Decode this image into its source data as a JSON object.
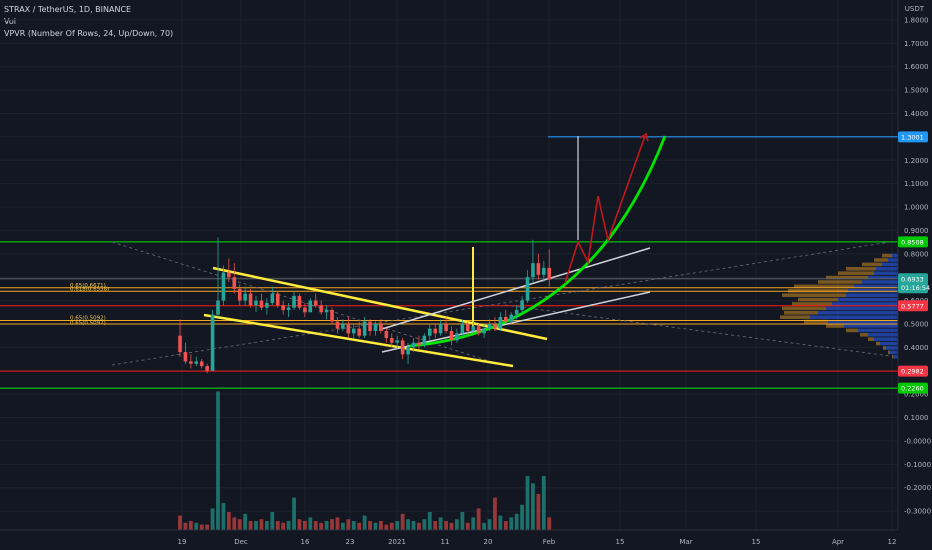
{
  "header": {
    "symbol_line": "STRAX / TetherUS, 1D, BINANCE",
    "vol_label": "Vol",
    "indicator_line": "VPVR (Number Of Rows, 24, Up/Down, 70)"
  },
  "colors": {
    "background": "#131722",
    "up": "#26a69a",
    "down": "#ef5350",
    "yellow": "#ffeb3b",
    "green_line": "#00e600",
    "red_line": "#ff1a1a",
    "blue_line": "#2196f3",
    "orange_line": "#f5a623",
    "white_line": "#d1d4dc",
    "dark_red_arrow": "#c2181d"
  },
  "chart_data": {
    "type": "candlestick",
    "symbol": "STRAX / TetherUS",
    "interval": "1D",
    "exchange": "BINANCE",
    "y_unit": "USDT",
    "x_ticks": [
      "19",
      "Dec",
      "16",
      "23",
      "2021",
      "11",
      "20",
      "Feb",
      "15",
      "Mar",
      "15",
      "Apr",
      "12"
    ],
    "y_ticks": [
      "1.9000",
      "1.8000",
      "1.7000",
      "1.6000",
      "1.5000",
      "1.4000",
      "1.3000",
      "1.2000",
      "1.1000",
      "1.0000",
      "0.9000",
      "0.8000",
      "0.7000",
      "0.6000",
      "0.5000",
      "0.4000",
      "0.3000",
      "0.2000",
      "0.1000",
      "-0.0000",
      "-0.1000",
      "-0.2000",
      "-0.3000"
    ],
    "price_badges": [
      {
        "label": "1.3001",
        "value": 1.3001,
        "color": "#2196f3"
      },
      {
        "label": "0.8508",
        "value": 0.8508,
        "color": "#00c800"
      },
      {
        "label": "0.6933",
        "value": 0.6933,
        "color": "#26a69a"
      },
      {
        "label": "01:16:54",
        "value": 0.655,
        "color": "#26a69a"
      },
      {
        "label": "0.5777",
        "value": 0.5777,
        "color": "#f23645"
      },
      {
        "label": "0.2982",
        "value": 0.2982,
        "color": "#f23645"
      },
      {
        "label": "0.2260",
        "value": 0.226,
        "color": "#00c800"
      }
    ],
    "horizontal_levels": [
      {
        "value": 1.3001,
        "color": "#2196f3"
      },
      {
        "value": 0.8508,
        "color": "#00e600"
      },
      {
        "value": 0.6933,
        "color": "#5d606b"
      },
      {
        "value": 0.655,
        "color": "#f5a623"
      },
      {
        "value": 0.64,
        "color": "#f5a623"
      },
      {
        "value": 0.5777,
        "color": "#ff1a1a"
      },
      {
        "value": 0.515,
        "color": "#f5a623"
      },
      {
        "value": 0.5,
        "color": "#f5a623"
      },
      {
        "value": 0.2982,
        "color": "#ff1a1a"
      },
      {
        "value": 0.226,
        "color": "#00e600"
      }
    ],
    "fib_labels": [
      {
        "text": "0.65(0.6671)",
        "value": 0.667
      },
      {
        "text": "0.618(0.6558)",
        "value": 0.652
      },
      {
        "text": "0.65(0.5092)",
        "value": 0.527
      },
      {
        "text": "0.65(0.5097)",
        "value": 0.507
      }
    ],
    "candles": [
      {
        "o": 0.45,
        "h": 0.52,
        "l": 0.36,
        "c": 0.38
      },
      {
        "o": 0.38,
        "h": 0.42,
        "l": 0.33,
        "c": 0.34
      },
      {
        "o": 0.34,
        "h": 0.37,
        "l": 0.31,
        "c": 0.33
      },
      {
        "o": 0.33,
        "h": 0.36,
        "l": 0.32,
        "c": 0.34
      },
      {
        "o": 0.34,
        "h": 0.35,
        "l": 0.31,
        "c": 0.32
      },
      {
        "o": 0.32,
        "h": 0.33,
        "l": 0.29,
        "c": 0.3
      },
      {
        "o": 0.3,
        "h": 0.56,
        "l": 0.3,
        "c": 0.54
      },
      {
        "o": 0.54,
        "h": 0.87,
        "l": 0.53,
        "c": 0.6
      },
      {
        "o": 0.6,
        "h": 0.75,
        "l": 0.58,
        "c": 0.72
      },
      {
        "o": 0.72,
        "h": 0.78,
        "l": 0.68,
        "c": 0.7
      },
      {
        "o": 0.7,
        "h": 0.76,
        "l": 0.63,
        "c": 0.65
      },
      {
        "o": 0.65,
        "h": 0.67,
        "l": 0.58,
        "c": 0.6
      },
      {
        "o": 0.6,
        "h": 0.66,
        "l": 0.58,
        "c": 0.63
      },
      {
        "o": 0.63,
        "h": 0.65,
        "l": 0.57,
        "c": 0.58
      },
      {
        "o": 0.58,
        "h": 0.62,
        "l": 0.55,
        "c": 0.6
      },
      {
        "o": 0.6,
        "h": 0.63,
        "l": 0.56,
        "c": 0.57
      },
      {
        "o": 0.57,
        "h": 0.61,
        "l": 0.54,
        "c": 0.59
      },
      {
        "o": 0.59,
        "h": 0.66,
        "l": 0.58,
        "c": 0.63
      },
      {
        "o": 0.63,
        "h": 0.64,
        "l": 0.57,
        "c": 0.58
      },
      {
        "o": 0.58,
        "h": 0.6,
        "l": 0.54,
        "c": 0.56
      },
      {
        "o": 0.56,
        "h": 0.59,
        "l": 0.53,
        "c": 0.57
      },
      {
        "o": 0.57,
        "h": 0.64,
        "l": 0.56,
        "c": 0.62
      },
      {
        "o": 0.62,
        "h": 0.63,
        "l": 0.56,
        "c": 0.57
      },
      {
        "o": 0.57,
        "h": 0.59,
        "l": 0.53,
        "c": 0.55
      },
      {
        "o": 0.55,
        "h": 0.61,
        "l": 0.55,
        "c": 0.6
      },
      {
        "o": 0.6,
        "h": 0.63,
        "l": 0.57,
        "c": 0.58
      },
      {
        "o": 0.58,
        "h": 0.6,
        "l": 0.54,
        "c": 0.55
      },
      {
        "o": 0.55,
        "h": 0.58,
        "l": 0.52,
        "c": 0.56
      },
      {
        "o": 0.56,
        "h": 0.57,
        "l": 0.5,
        "c": 0.51
      },
      {
        "o": 0.51,
        "h": 0.53,
        "l": 0.46,
        "c": 0.48
      },
      {
        "o": 0.48,
        "h": 0.52,
        "l": 0.47,
        "c": 0.5
      },
      {
        "o": 0.5,
        "h": 0.53,
        "l": 0.44,
        "c": 0.46
      },
      {
        "o": 0.46,
        "h": 0.5,
        "l": 0.44,
        "c": 0.48
      },
      {
        "o": 0.48,
        "h": 0.51,
        "l": 0.44,
        "c": 0.45
      },
      {
        "o": 0.45,
        "h": 0.53,
        "l": 0.44,
        "c": 0.51
      },
      {
        "o": 0.51,
        "h": 0.52,
        "l": 0.45,
        "c": 0.47
      },
      {
        "o": 0.47,
        "h": 0.51,
        "l": 0.45,
        "c": 0.5
      },
      {
        "o": 0.5,
        "h": 0.52,
        "l": 0.46,
        "c": 0.47
      },
      {
        "o": 0.47,
        "h": 0.48,
        "l": 0.42,
        "c": 0.44
      },
      {
        "o": 0.44,
        "h": 0.46,
        "l": 0.4,
        "c": 0.42
      },
      {
        "o": 0.42,
        "h": 0.45,
        "l": 0.39,
        "c": 0.43
      },
      {
        "o": 0.43,
        "h": 0.44,
        "l": 0.35,
        "c": 0.37
      },
      {
        "o": 0.37,
        "h": 0.42,
        "l": 0.33,
        "c": 0.4
      },
      {
        "o": 0.4,
        "h": 0.44,
        "l": 0.38,
        "c": 0.42
      },
      {
        "o": 0.42,
        "h": 0.45,
        "l": 0.39,
        "c": 0.41
      },
      {
        "o": 0.41,
        "h": 0.46,
        "l": 0.4,
        "c": 0.45
      },
      {
        "o": 0.45,
        "h": 0.5,
        "l": 0.43,
        "c": 0.48
      },
      {
        "o": 0.48,
        "h": 0.5,
        "l": 0.44,
        "c": 0.46
      },
      {
        "o": 0.46,
        "h": 0.52,
        "l": 0.45,
        "c": 0.5
      },
      {
        "o": 0.5,
        "h": 0.53,
        "l": 0.46,
        "c": 0.47
      },
      {
        "o": 0.47,
        "h": 0.49,
        "l": 0.41,
        "c": 0.43
      },
      {
        "o": 0.43,
        "h": 0.48,
        "l": 0.42,
        "c": 0.46
      },
      {
        "o": 0.46,
        "h": 0.52,
        "l": 0.45,
        "c": 0.5
      },
      {
        "o": 0.5,
        "h": 0.51,
        "l": 0.45,
        "c": 0.47
      },
      {
        "o": 0.47,
        "h": 0.51,
        "l": 0.46,
        "c": 0.49
      },
      {
        "o": 0.49,
        "h": 0.5,
        "l": 0.45,
        "c": 0.46
      },
      {
        "o": 0.46,
        "h": 0.5,
        "l": 0.44,
        "c": 0.48
      },
      {
        "o": 0.48,
        "h": 0.52,
        "l": 0.47,
        "c": 0.5
      },
      {
        "o": 0.5,
        "h": 0.53,
        "l": 0.47,
        "c": 0.48
      },
      {
        "o": 0.48,
        "h": 0.55,
        "l": 0.47,
        "c": 0.53
      },
      {
        "o": 0.53,
        "h": 0.56,
        "l": 0.5,
        "c": 0.51
      },
      {
        "o": 0.51,
        "h": 0.55,
        "l": 0.5,
        "c": 0.54
      },
      {
        "o": 0.54,
        "h": 0.58,
        "l": 0.52,
        "c": 0.56
      },
      {
        "o": 0.56,
        "h": 0.62,
        "l": 0.55,
        "c": 0.6
      },
      {
        "o": 0.6,
        "h": 0.73,
        "l": 0.59,
        "c": 0.7
      },
      {
        "o": 0.7,
        "h": 0.86,
        "l": 0.68,
        "c": 0.76
      },
      {
        "o": 0.76,
        "h": 0.8,
        "l": 0.69,
        "c": 0.71
      },
      {
        "o": 0.71,
        "h": 0.77,
        "l": 0.68,
        "c": 0.74
      },
      {
        "o": 0.74,
        "h": 0.82,
        "l": 0.66,
        "c": 0.69
      }
    ],
    "volumes": [
      0.08,
      0.04,
      0.05,
      0.04,
      0.03,
      0.03,
      0.12,
      0.77,
      0.15,
      0.1,
      0.07,
      0.06,
      0.09,
      0.05,
      0.05,
      0.06,
      0.05,
      0.1,
      0.05,
      0.04,
      0.05,
      0.18,
      0.06,
      0.05,
      0.07,
      0.05,
      0.04,
      0.05,
      0.06,
      0.07,
      0.04,
      0.06,
      0.05,
      0.04,
      0.08,
      0.05,
      0.04,
      0.05,
      0.03,
      0.04,
      0.05,
      0.09,
      0.06,
      0.05,
      0.04,
      0.06,
      0.1,
      0.05,
      0.07,
      0.05,
      0.04,
      0.06,
      0.1,
      0.04,
      0.07,
      0.12,
      0.04,
      0.06,
      0.18,
      0.08,
      0.05,
      0.07,
      0.09,
      0.14,
      0.3,
      0.26,
      0.2,
      0.3,
      0.07
    ],
    "volume_up": [
      0,
      0,
      0,
      1,
      0,
      0,
      1,
      1,
      1,
      0,
      0,
      0,
      1,
      0,
      1,
      0,
      1,
      1,
      0,
      0,
      1,
      1,
      0,
      0,
      1,
      0,
      0,
      1,
      0,
      0,
      1,
      0,
      1,
      0,
      1,
      0,
      1,
      0,
      0,
      0,
      1,
      0,
      1,
      1,
      0,
      1,
      1,
      0,
      1,
      0,
      0,
      1,
      1,
      0,
      1,
      0,
      1,
      1,
      0,
      1,
      0,
      1,
      1,
      1,
      1,
      1,
      0,
      1,
      0
    ]
  }
}
